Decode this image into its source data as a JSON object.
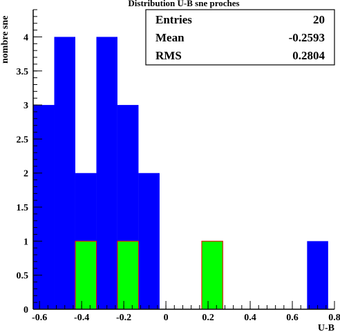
{
  "chart_data": {
    "type": "bar",
    "title": "Distribution U-B sne proches",
    "xlabel": "U-B",
    "ylabel": "nombre sne",
    "xlim": [
      -0.63,
      0.8
    ],
    "ylim": [
      0,
      4.4
    ],
    "grid": false,
    "bin_width": 0.1,
    "series": [
      {
        "name": "",
        "color": "#0000ff",
        "bins": [
          {
            "x0": -0.63,
            "x1": -0.53,
            "value": 3
          },
          {
            "x0": -0.53,
            "x1": -0.43,
            "value": 4
          },
          {
            "x0": -0.43,
            "x1": -0.33,
            "value": 2
          },
          {
            "x0": -0.33,
            "x1": -0.23,
            "value": 4
          },
          {
            "x0": -0.23,
            "x1": -0.13,
            "value": 3
          },
          {
            "x0": -0.13,
            "x1": -0.03,
            "value": 2
          },
          {
            "x0": 0.17,
            "x1": 0.27,
            "value": 1
          },
          {
            "x0": 0.67,
            "x1": 0.77,
            "value": 1
          }
        ]
      },
      {
        "name": "",
        "color": "#00ff00",
        "edge_color": "#ff0000",
        "bins": [
          {
            "x0": -0.43,
            "x1": -0.33,
            "value": 1
          },
          {
            "x0": -0.23,
            "x1": -0.13,
            "value": 1
          },
          {
            "x0": 0.17,
            "x1": 0.27,
            "value": 1
          }
        ]
      }
    ],
    "x_ticks": [
      "-0.6",
      "-0.4",
      "-0.2",
      "0",
      "0.2",
      "0.4",
      "0.6",
      "0.8"
    ],
    "x_tick_values": [
      -0.6,
      -0.4,
      -0.2,
      0,
      0.2,
      0.4,
      0.6,
      0.8
    ],
    "y_ticks": [
      "0",
      "0.5",
      "1",
      "1.5",
      "2",
      "2.5",
      "3",
      "3.5",
      "4"
    ],
    "y_tick_values": [
      0,
      0.5,
      1,
      1.5,
      2,
      2.5,
      3,
      3.5,
      4
    ],
    "stats": [
      {
        "label": "Entries",
        "value": "20"
      },
      {
        "label": "Mean",
        "value": "-0.2593"
      },
      {
        "label": "RMS",
        "value": "0.2804"
      }
    ],
    "stats_position": "top-right"
  }
}
